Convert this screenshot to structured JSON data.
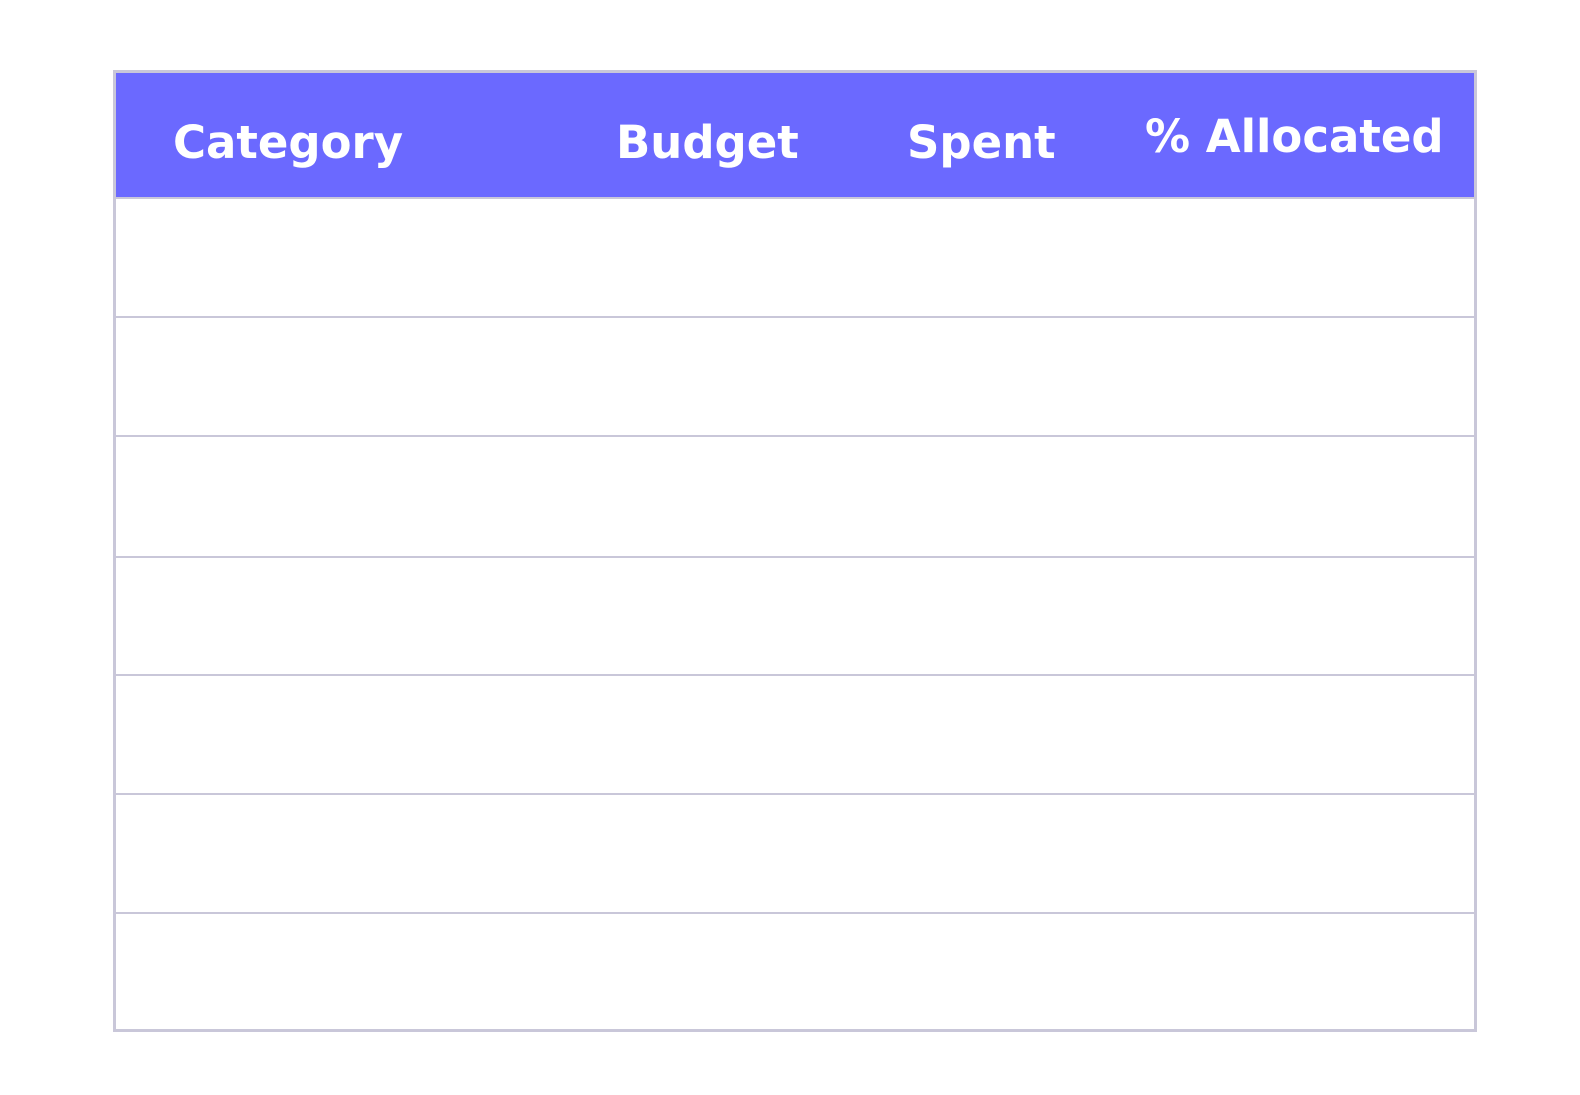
{
  "table": {
    "headers": {
      "category": "Category",
      "budget": "Budget",
      "spent": "Spent",
      "allocated": "% Allocated"
    },
    "rows": [
      {
        "category": "",
        "budget": "",
        "spent": "",
        "allocated": ""
      },
      {
        "category": "",
        "budget": "",
        "spent": "",
        "allocated": ""
      },
      {
        "category": "",
        "budget": "",
        "spent": "",
        "allocated": ""
      },
      {
        "category": "",
        "budget": "",
        "spent": "",
        "allocated": ""
      },
      {
        "category": "",
        "budget": "",
        "spent": "",
        "allocated": ""
      },
      {
        "category": "",
        "budget": "",
        "spent": "",
        "allocated": ""
      },
      {
        "category": "",
        "budget": "",
        "spent": "",
        "allocated": ""
      }
    ]
  },
  "colors": {
    "header_background": "#6b69ff",
    "header_text": "#ffffff",
    "border": "#c9c7d9",
    "row_background": "#ffffff"
  }
}
